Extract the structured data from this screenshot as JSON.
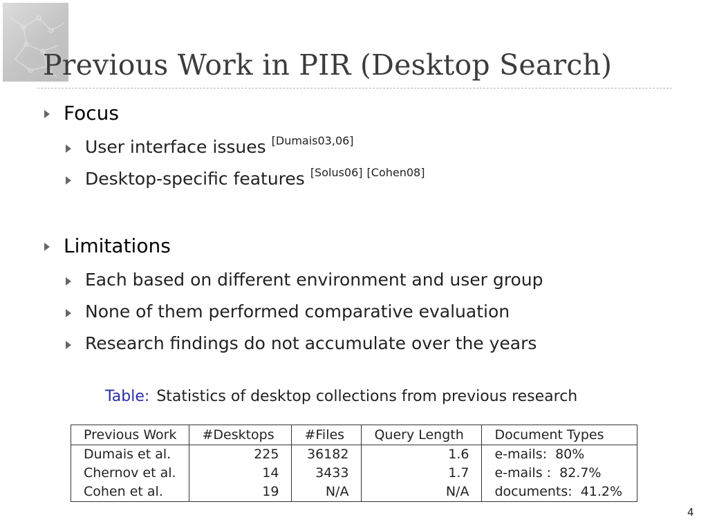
{
  "slide": {
    "title": "Previous Work in PIR (Desktop Search)",
    "page_number": "4"
  },
  "bullets": [
    {
      "label": "Focus",
      "children": [
        {
          "text": "User interface issues",
          "citations": [
            "[Dumais03,06]"
          ]
        },
        {
          "text": "Desktop-specific features",
          "citations": [
            "[Solus06]",
            "[Cohen08]"
          ]
        }
      ]
    },
    {
      "label": "Limitations",
      "children": [
        {
          "text": "Each based on different environment and user group"
        },
        {
          "text": "None of them performed comparative evaluation"
        },
        {
          "text": "Research findings do not accumulate over the years"
        }
      ]
    }
  ],
  "table": {
    "caption_label": "Table:",
    "caption_text": "Statistics of desktop collections from previous research",
    "headers": [
      "Previous Work",
      "#Desktops",
      "#Files",
      "Query Length",
      "Document Types"
    ],
    "rows": [
      [
        "Dumais et al.",
        "225",
        "36182",
        "1.6",
        "e-mails:  80%"
      ],
      [
        "Chernov et al.",
        "14",
        "3433",
        "1.7",
        "e-mails :  82.7%"
      ],
      [
        "Cohen et al.",
        "19",
        "N/A",
        "N/A",
        "documents:  41.2%"
      ]
    ]
  },
  "colors": {
    "title": "#3c3c3c",
    "caption_label": "#2b2ba8",
    "bullet_arrow": "#666666"
  }
}
